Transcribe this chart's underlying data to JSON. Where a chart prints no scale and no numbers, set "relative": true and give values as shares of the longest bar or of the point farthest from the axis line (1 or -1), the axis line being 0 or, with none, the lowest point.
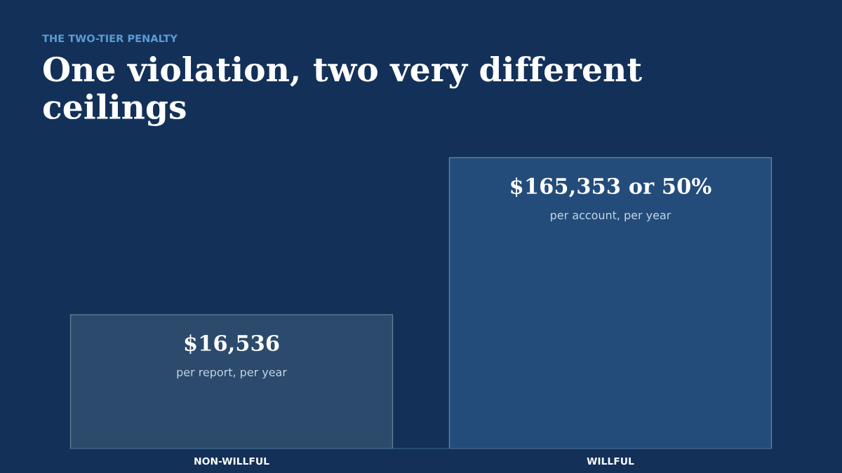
{
  "chart_data": {
    "type": "bar",
    "subtitle": "THE TWO-TIER PENALTY",
    "title": "One violation, two very different ceilings",
    "categories": [
      "NON-WILLFUL",
      "WILLFUL"
    ],
    "values": [
      0.46,
      1
    ],
    "relative": true,
    "colors": [
      "#2c4a6b",
      "#244c7a"
    ],
    "annotations": [
      "$16,536",
      "per report, per year",
      "$165,353 or 50%",
      "per account, per year"
    ]
  }
}
